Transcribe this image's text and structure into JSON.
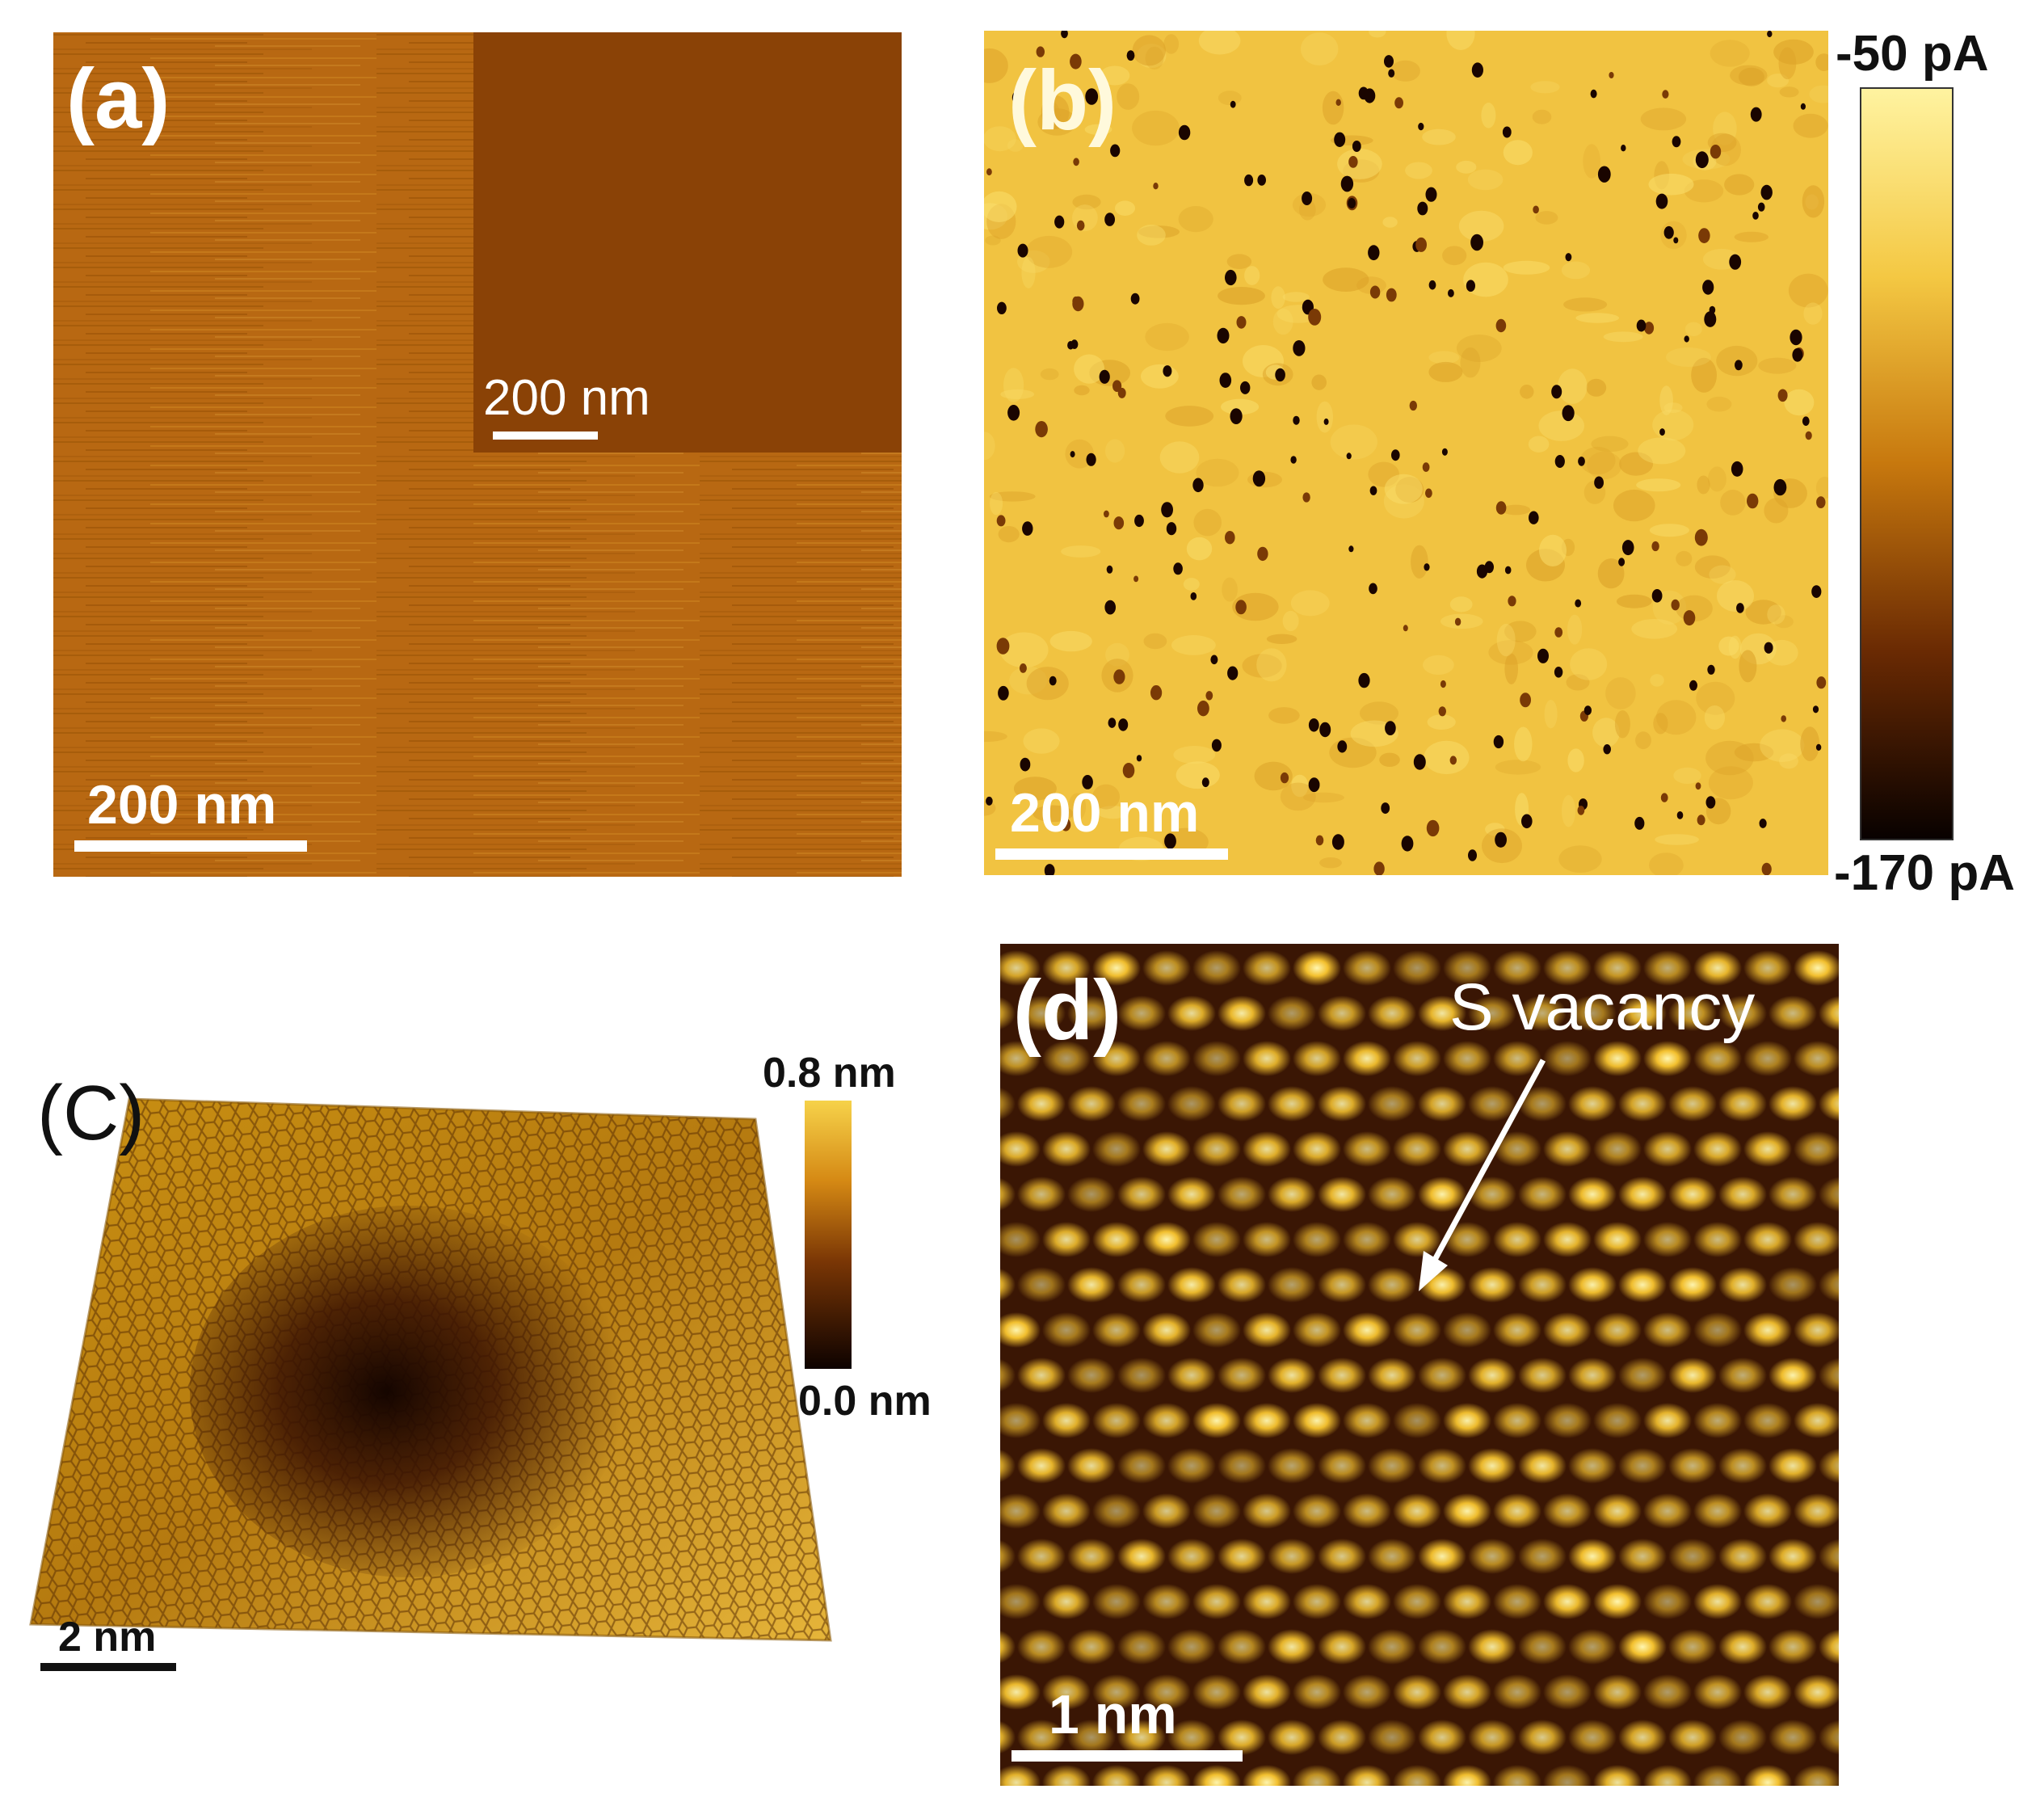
{
  "panels": {
    "a": {
      "label": "(a)",
      "scale_bar": "200 nm",
      "inset_scale_bar": "200 nm"
    },
    "b": {
      "label": "(b)",
      "scale_bar": "200 nm",
      "colorbar": {
        "max": "-50 pA",
        "min": "-170 pA"
      }
    },
    "c": {
      "label": "(C)",
      "scale_bar": "2 nm",
      "colorbar": {
        "max": "0.8 nm",
        "min": "0.0 nm"
      }
    },
    "d": {
      "label": "(d)",
      "scale_bar": "1 nm",
      "annotation": "S vacancy"
    }
  },
  "colors": {
    "stm_dark": "#1a0500",
    "stm_mid": "#b8600a",
    "stm_light": "#ffe77a",
    "panel_a_base": "#b96a12",
    "panel_a_inset": "#8a4206",
    "panel_b_base": "#f1c341"
  }
}
